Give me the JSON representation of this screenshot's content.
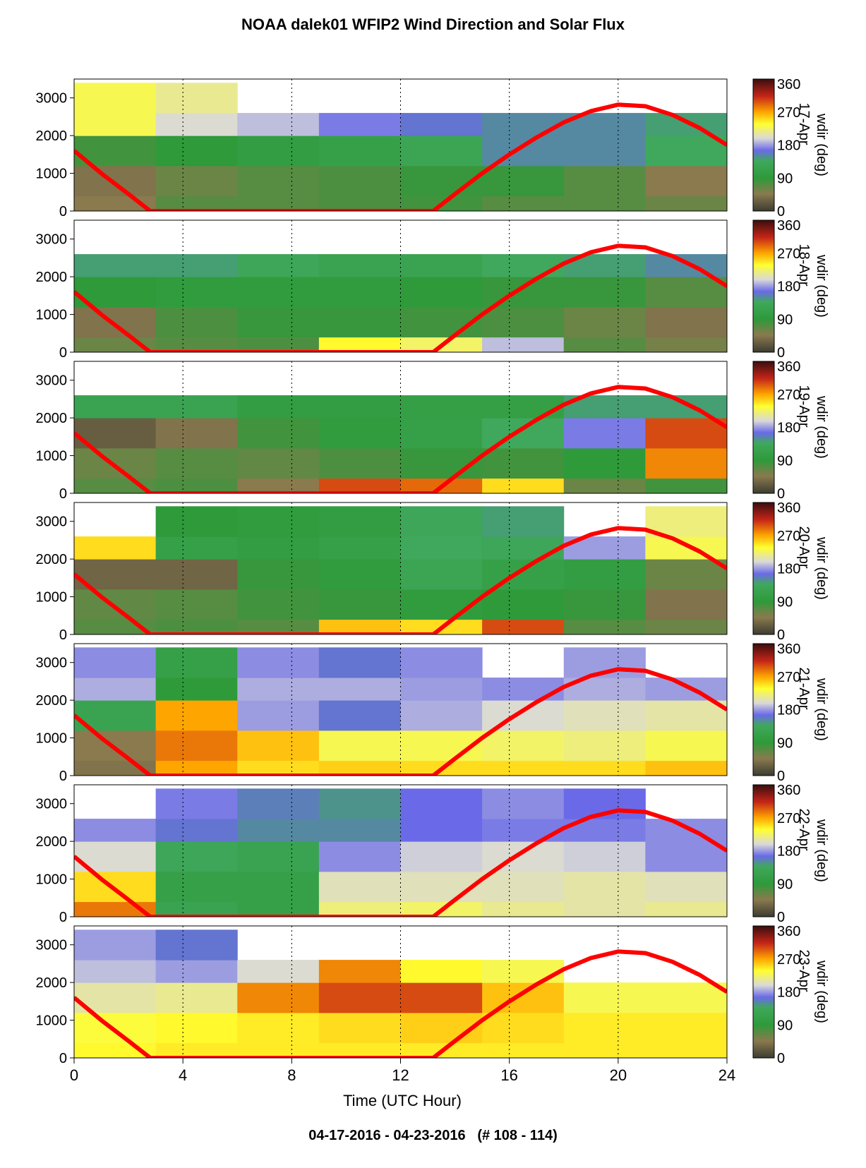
{
  "title": "NOAA dalek01 WFIP2 Wind Direction and Solar Flux",
  "footer": "04-17-2016 - 04-23-2016   (# 108 - 114)",
  "chart_data": {
    "type": "heatmap",
    "xlabel": "Time (UTC Hour)",
    "x_ticks": [
      0,
      4,
      8,
      12,
      16,
      20,
      24
    ],
    "xlim": [
      0,
      24
    ],
    "ylim": [
      0,
      3500
    ],
    "y_ticks": [
      0,
      1000,
      2000,
      3000
    ],
    "colorbar": {
      "label": "wdir (deg)",
      "ticks": [
        0,
        90,
        180,
        270,
        360
      ],
      "range": [
        0,
        360
      ]
    },
    "colors": {
      "solar_flux_line": "#ff0000",
      "colormap": [
        "#4a3e2a",
        "#8a7a4e",
        "#2e9a3a",
        "#6a6ae8",
        "#d9d9d9",
        "#ffff30",
        "#ffa500",
        "#c42418",
        "#3a0e0e"
      ]
    },
    "solar_flux_curve": {
      "x": [
        0,
        1,
        2,
        2.8,
        13.2,
        14,
        15,
        16,
        17,
        18,
        19,
        20,
        21,
        22,
        23,
        24
      ],
      "y": [
        1600,
        1000,
        450,
        0,
        0,
        450,
        1000,
        1500,
        1950,
        2350,
        2650,
        2820,
        2780,
        2550,
        2200,
        1750
      ]
    },
    "panels": [
      {
        "date_label": "17-Apr",
        "layers": [
          {
            "z": [
              0,
              400
            ],
            "dir": [
              45,
              70,
              70,
              75,
              80,
              70,
              70,
              60
            ]
          },
          {
            "z": [
              400,
              1200
            ],
            "dir": [
              40,
              60,
              70,
              75,
              85,
              85,
              70,
              45
            ]
          },
          {
            "z": [
              1200,
              2000
            ],
            "dir": [
              80,
              90,
              100,
              110,
              125,
              150,
              150,
              135
            ]
          },
          {
            "z": [
              2000,
              2600
            ],
            "dir": [
              230,
              200,
              190,
              170,
              160,
              150,
              150,
              140
            ]
          },
          {
            "z": [
              2600,
              3400
            ],
            "dir": [
              230,
              215,
              null,
              null,
              null,
              null,
              null,
              null
            ]
          }
        ]
      },
      {
        "date_label": "18-Apr",
        "layers": [
          {
            "z": [
              0,
              400
            ],
            "dir": [
              60,
              70,
              75,
              240,
              225,
              190,
              70,
              55
            ]
          },
          {
            "z": [
              400,
              1200
            ],
            "dir": [
              40,
              75,
              85,
              85,
              80,
              75,
              60,
              40
            ]
          },
          {
            "z": [
              1200,
              2000
            ],
            "dir": [
              90,
              95,
              95,
              95,
              90,
              85,
              85,
              70
            ]
          },
          {
            "z": [
              2000,
              2600
            ],
            "dir": [
              140,
              140,
              130,
              120,
              120,
              135,
              140,
              150
            ]
          }
        ]
      },
      {
        "date_label": "19-Apr",
        "layers": [
          {
            "z": [
              0,
              400
            ],
            "dir": [
              70,
              75,
              45,
              300,
              290,
              250,
              60,
              80
            ]
          },
          {
            "z": [
              400,
              1200
            ],
            "dir": [
              60,
              70,
              65,
              75,
              85,
              80,
              90,
              280
            ]
          },
          {
            "z": [
              1200,
              2000
            ],
            "dir": [
              25,
              40,
              80,
              95,
              110,
              135,
              170,
              300
            ]
          },
          {
            "z": [
              2000,
              2600
            ],
            "dir": [
              120,
              120,
              100,
              100,
              105,
              105,
              140,
              140
            ]
          }
        ]
      },
      {
        "date_label": "20-Apr",
        "layers": [
          {
            "z": [
              0,
              400
            ],
            "dir": [
              70,
              75,
              70,
              260,
              250,
              300,
              70,
              60
            ]
          },
          {
            "z": [
              400,
              1200
            ],
            "dir": [
              65,
              70,
              80,
              85,
              95,
              90,
              85,
              40
            ]
          },
          {
            "z": [
              1200,
              2000
            ],
            "dir": [
              30,
              30,
              85,
              95,
              125,
              110,
              100,
              60
            ]
          },
          {
            "z": [
              2000,
              2600
            ],
            "dir": [
              250,
              110,
              100,
              110,
              135,
              130,
              180,
              230
            ]
          },
          {
            "z": [
              2600,
              3400
            ],
            "dir": [
              null,
              90,
              95,
              100,
              130,
              140,
              null,
              220
            ]
          }
        ]
      },
      {
        "date_label": "21-Apr",
        "layers": [
          {
            "z": [
              0,
              400
            ],
            "dir": [
              40,
              270,
              250,
              255,
              250,
              250,
              250,
              260
            ]
          },
          {
            "z": [
              400,
              1200
            ],
            "dir": [
              45,
              285,
              260,
              230,
              230,
              225,
              220,
              230
            ]
          },
          {
            "z": [
              1200,
              2000
            ],
            "dir": [
              120,
              270,
              180,
              160,
              185,
              200,
              205,
              210
            ]
          },
          {
            "z": [
              2000,
              2600
            ],
            "dir": [
              185,
              90,
              185,
              185,
              180,
              175,
              185,
              180
            ]
          },
          {
            "z": [
              2600,
              3400
            ],
            "dir": [
              175,
              110,
              175,
              160,
              175,
              null,
              180,
              null
            ]
          }
        ]
      },
      {
        "date_label": "22-Apr",
        "layers": [
          {
            "z": [
              0,
              400
            ],
            "dir": [
              285,
              120,
              110,
              220,
              225,
              215,
              210,
              215
            ]
          },
          {
            "z": [
              400,
              1200
            ],
            "dir": [
              250,
              110,
              110,
              205,
              205,
              205,
              210,
              205
            ]
          },
          {
            "z": [
              1200,
              2000
            ],
            "dir": [
              200,
              130,
              120,
              175,
              195,
              200,
              195,
              175
            ]
          },
          {
            "z": [
              2000,
              2600
            ],
            "dir": [
              175,
              160,
              150,
              150,
              165,
              170,
              170,
              175
            ]
          },
          {
            "z": [
              2600,
              3400
            ],
            "dir": [
              null,
              170,
              155,
              145,
              165,
              175,
              165,
              null
            ]
          }
        ]
      },
      {
        "date_label": "23-Apr",
        "layers": [
          {
            "z": [
              0,
              400
            ],
            "dir": [
              240,
              245,
              245,
              245,
              245,
              245,
              245,
              245
            ]
          },
          {
            "z": [
              400,
              1200
            ],
            "dir": [
              235,
              240,
              245,
              250,
              255,
              250,
              245,
              245
            ]
          },
          {
            "z": [
              1200,
              2000
            ],
            "dir": [
              210,
              215,
              280,
              300,
              300,
              260,
              230,
              230
            ]
          },
          {
            "z": [
              2000,
              2600
            ],
            "dir": [
              190,
              180,
              200,
              280,
              240,
              230,
              null,
              null
            ]
          },
          {
            "z": [
              2600,
              3400
            ],
            "dir": [
              180,
              160,
              null,
              null,
              null,
              null,
              null,
              null
            ]
          }
        ]
      }
    ]
  }
}
